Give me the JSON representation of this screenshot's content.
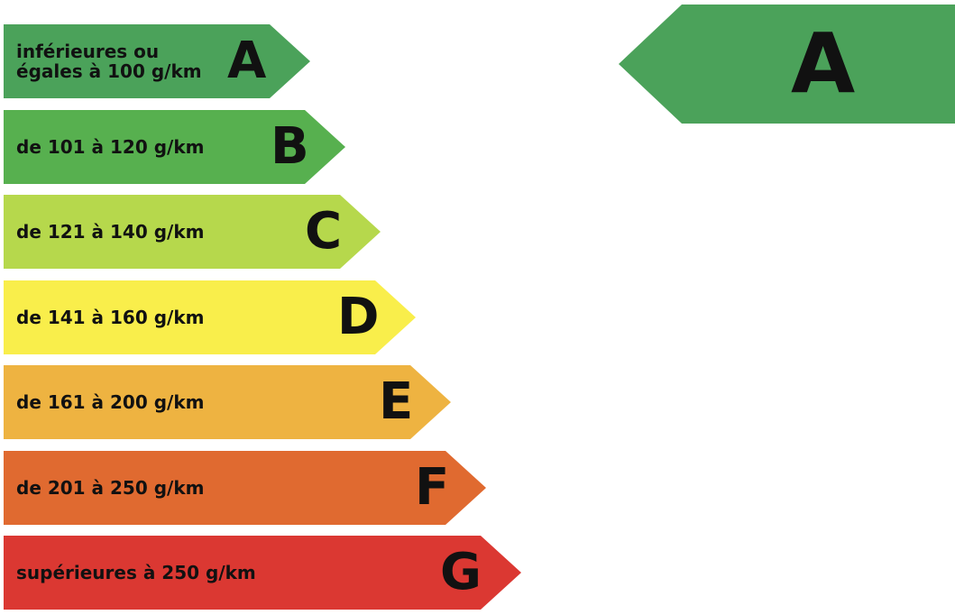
{
  "bands": [
    {
      "letter": "A",
      "label": "inférieures ou\négales à 100 g/km",
      "color": "#4ba25a"
    },
    {
      "letter": "B",
      "label": "de 101 à 120 g/km",
      "color": "#57b04f"
    },
    {
      "letter": "C",
      "label": "de 121 à 140 g/km",
      "color": "#b6d84c"
    },
    {
      "letter": "D",
      "label": "de 141 à 160 g/km",
      "color": "#f9ee4b"
    },
    {
      "letter": "E",
      "label": "de 161 à 200 g/km",
      "color": "#eeb341"
    },
    {
      "letter": "F",
      "label": "de 201 à 250 g/km",
      "color": "#e06a30"
    },
    {
      "letter": "G",
      "label": "supérieures à 250 g/km",
      "color": "#db3832"
    }
  ],
  "result": {
    "letter": "A",
    "color": "#4ba25a"
  }
}
